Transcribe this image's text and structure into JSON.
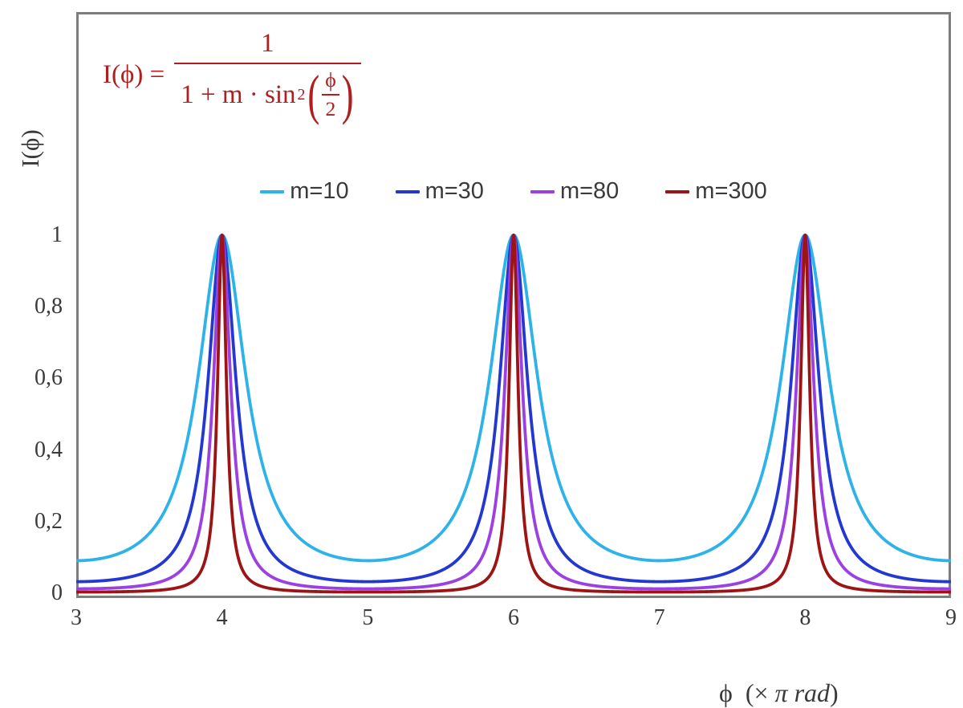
{
  "formula": {
    "lhs": "I(ϕ) =",
    "numerator": "1",
    "den_prefix": "1 + m · sin",
    "den_exponent": "2",
    "paren_open": "(",
    "paren_close": ")",
    "inner_numerator": "ϕ",
    "inner_denominator": "2",
    "color": "#b01e1e"
  },
  "axes": {
    "y_title": "I(ϕ)",
    "x_title_parts": {
      "pre": "ϕ  (× ",
      "italic": "π rad",
      "post": ")"
    }
  },
  "colors": {
    "frame_border": "#7d7d7d",
    "axis_line": "#8c8c8c",
    "text": "#3a3a3a"
  },
  "chart_data": {
    "type": "line",
    "title": "",
    "formula_text": "I(ϕ) = 1 / (1 + m·sin²(ϕ/2))",
    "x_axis": {
      "label": "ϕ (× π rad)",
      "min": 3,
      "max": 9,
      "ticks": [
        3,
        4,
        5,
        6,
        7,
        8,
        9
      ]
    },
    "y_axis": {
      "label": "I(ϕ)",
      "min": 0,
      "max": 1,
      "tick_labels": [
        "0",
        "0,2",
        "0,4",
        "0,6",
        "0,8",
        "1"
      ],
      "tick_values": [
        0,
        0.2,
        0.4,
        0.6,
        0.8,
        1
      ]
    },
    "grid": false,
    "legend_position": "top-center",
    "peaks_at_x": [
      4,
      6,
      8
    ],
    "peak_value": 1,
    "series": [
      {
        "name": "m=10",
        "m": 10,
        "color": "#2eb3e8",
        "min_value": 0.0909
      },
      {
        "name": "m=30",
        "m": 30,
        "color": "#2238d0",
        "min_value": 0.0323
      },
      {
        "name": "m=80",
        "m": 80,
        "color": "#9b40e2",
        "min_value": 0.0123
      },
      {
        "name": "m=300",
        "m": 300,
        "color": "#9c1414",
        "min_value": 0.0033
      }
    ],
    "sampling": {
      "x_start": 3,
      "x_end": 9,
      "step": 0.002,
      "function": "1/(1+m*sin(x*pi/2)^2)"
    }
  }
}
